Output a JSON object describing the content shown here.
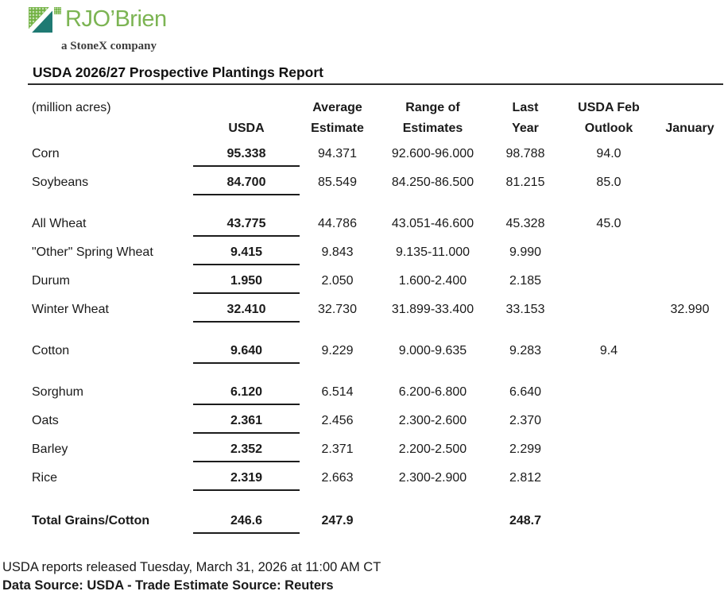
{
  "logo": {
    "brand": "RJO’Brien",
    "tagline": "a StoneX company",
    "colors": {
      "green": "#72b243",
      "teal": "#1f7a73",
      "brand_text": "#7cb453"
    }
  },
  "report": {
    "title": "USDA 2026/27 Prospective Plantings Report",
    "units_label": "(million acres)"
  },
  "table": {
    "columns": {
      "usda": "USDA",
      "average1": "Average",
      "average2": "Estimate",
      "range1": "Range of",
      "range2": "Estimates",
      "last1": "Last",
      "last2": "Year",
      "feb1": "USDA Feb",
      "feb2": "Outlook",
      "january": "January"
    },
    "rows": [
      {
        "commodity": "Corn",
        "usda": "95.338",
        "average_estimate": "94.371",
        "range_of_estimates": "92.600-96.000",
        "last_year": "98.788",
        "usda_feb_outlook": "94.0",
        "january": ""
      },
      {
        "commodity": "Soybeans",
        "usda": "84.700",
        "average_estimate": "85.549",
        "range_of_estimates": "84.250-86.500",
        "last_year": "81.215",
        "usda_feb_outlook": "85.0",
        "january": ""
      },
      {
        "commodity": "All Wheat",
        "usda": "43.775",
        "average_estimate": "44.786",
        "range_of_estimates": "43.051-46.600",
        "last_year": "45.328",
        "usda_feb_outlook": "45.0",
        "january": ""
      },
      {
        "commodity": "\"Other\" Spring Wheat",
        "usda": "9.415",
        "average_estimate": "9.843",
        "range_of_estimates": "9.135-11.000",
        "last_year": "9.990",
        "usda_feb_outlook": "",
        "january": ""
      },
      {
        "commodity": "Durum",
        "usda": "1.950",
        "average_estimate": "2.050",
        "range_of_estimates": "1.600-2.400",
        "last_year": "2.185",
        "usda_feb_outlook": "",
        "january": ""
      },
      {
        "commodity": "Winter Wheat",
        "usda": "32.410",
        "average_estimate": "32.730",
        "range_of_estimates": "31.899-33.400",
        "last_year": "33.153",
        "usda_feb_outlook": "",
        "january": "32.990"
      },
      {
        "commodity": "Cotton",
        "usda": "9.640",
        "average_estimate": "9.229",
        "range_of_estimates": "9.000-9.635",
        "last_year": "9.283",
        "usda_feb_outlook": "9.4",
        "january": ""
      },
      {
        "commodity": "Sorghum",
        "usda": "6.120",
        "average_estimate": "6.514",
        "range_of_estimates": "6.200-6.800",
        "last_year": "6.640",
        "usda_feb_outlook": "",
        "january": ""
      },
      {
        "commodity": "Oats",
        "usda": "2.361",
        "average_estimate": "2.456",
        "range_of_estimates": "2.300-2.600",
        "last_year": "2.370",
        "usda_feb_outlook": "",
        "january": ""
      },
      {
        "commodity": "Barley",
        "usda": "2.352",
        "average_estimate": "2.371",
        "range_of_estimates": "2.200-2.500",
        "last_year": "2.299",
        "usda_feb_outlook": "",
        "january": ""
      },
      {
        "commodity": "Rice",
        "usda": "2.319",
        "average_estimate": "2.663",
        "range_of_estimates": "2.300-2.900",
        "last_year": "2.812",
        "usda_feb_outlook": "",
        "january": ""
      },
      {
        "commodity": "Total Grains/Cotton",
        "usda": "246.6",
        "average_estimate": "247.9",
        "range_of_estimates": "",
        "last_year": "248.7",
        "usda_feb_outlook": "",
        "january": ""
      }
    ]
  },
  "footer": {
    "release_note": "USDA reports released Tuesday, March 31, 2026 at 11:00 AM CT",
    "source_note": "Data Source: USDA - Trade Estimate Source: Reuters"
  }
}
